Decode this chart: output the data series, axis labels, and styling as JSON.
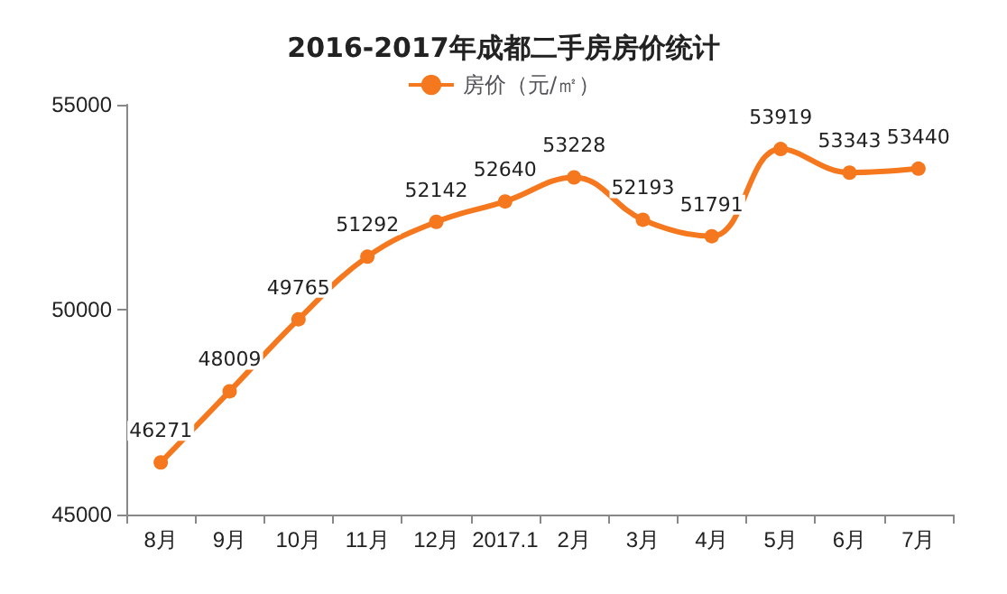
{
  "chart_data": {
    "type": "line",
    "title": "2016-2017年成都二手房房价统计",
    "categories": [
      "8月",
      "9月",
      "10月",
      "11月",
      "12月",
      "2017.1",
      "2月",
      "3月",
      "4月",
      "5月",
      "6月",
      "7月"
    ],
    "series": [
      {
        "name": "房价（元/㎡）",
        "color": "#f5781e",
        "values": [
          46271,
          48009,
          49765,
          51292,
          52142,
          52640,
          53228,
          52193,
          51791,
          53919,
          53343,
          53440
        ]
      }
    ],
    "ylim": [
      45000,
      55000
    ],
    "yticks": [
      45000,
      50000,
      55000
    ],
    "grid": false,
    "legend": "top",
    "marker": "circle",
    "line_style": "solid",
    "data_labels": true
  }
}
